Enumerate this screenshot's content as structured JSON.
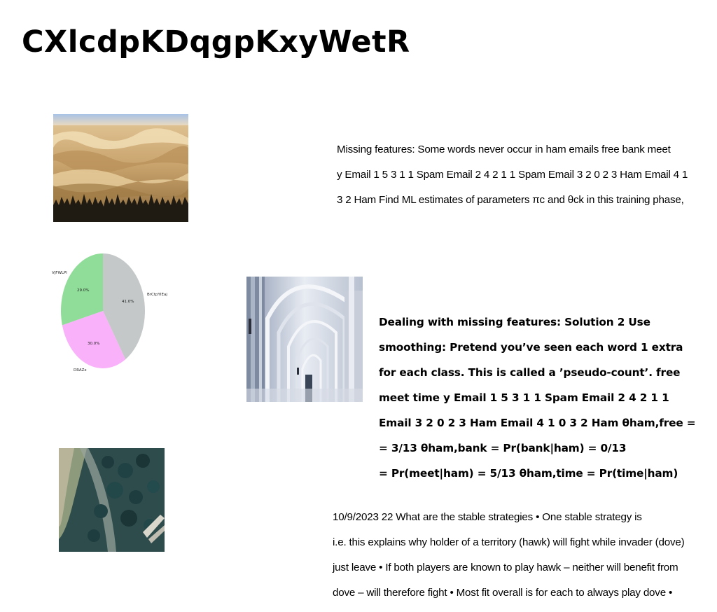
{
  "page": {
    "title": "CXlcdpKDqgpKxyWetR"
  },
  "blocks": {
    "block1_lines": [
      "Missing features: Some words never occur in ham emails free bank meet",
      "y Email 1 5 3 1 1 Spam Email 2 4 2 1 1 Spam Email 3 2 0 2 3 Ham Email 4 1",
      "3 2 Ham Find ML estimates of parameters πc and θck in this training phase,"
    ],
    "block2_lines": [
      "Dealing with missing features: Solution 2 Use",
      "smoothing: Pretend you’ve seen each word 1 extra",
      "for each class. This is called a ’pseudo-count’. free",
      "meet time y Email 1 5 3 1 1 Spam Email 2 4 2 1 1",
      "Email 3 2 0 2 3 Ham Email 4 1 0 3 2 Ham θham,free =",
      "= 3/13 θham,bank = Pr(bank|ham) = 0/13",
      "= Pr(meet|ham) = 5/13 θham,time = Pr(time|ham)"
    ],
    "block3_lines": [
      "10/9/2023 22 What are the stable strategies • One stable strategy is",
      "i.e. this explains why holder of a territory (hawk) will fight while invader (dove)",
      "just leave • If both players are known to play hawk – neither will benefit from",
      "dove – will therefore fight • Most fit overall is for each to always play dove •"
    ]
  },
  "images": {
    "desert": "desert-dunes-photo",
    "arches": "white-arched-corridor-photo",
    "aerial": "aerial-coastline-palms-photo"
  },
  "chart_data": {
    "type": "pie",
    "labels": [
      "BrCtpYIEaj",
      "DRAZx",
      "VjFWLPl"
    ],
    "values": [
      41.0,
      30.0,
      29.0
    ],
    "value_labels": [
      "41.0%",
      "30.0%",
      "29.0%"
    ],
    "colors": [
      "#c4c8c8",
      "#f9b1f9",
      "#8fdd98"
    ],
    "start_angle_deg": 90,
    "direction": "clockwise"
  }
}
